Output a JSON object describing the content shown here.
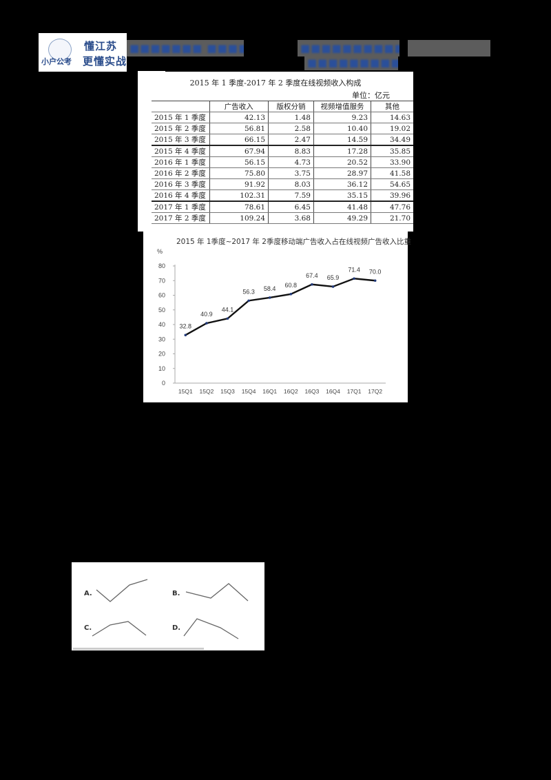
{
  "header": {
    "logo": {
      "line1": "懂江苏",
      "line2": "小户公考",
      "line3": "更懂实战"
    },
    "blurred_left": "■■■■■■■ ■■■■",
    "blurred_right_line1": "■■■■■■■■■■ ■■■■■■■",
    "blurred_right_line2": "■■■■■■■■■■"
  },
  "table": {
    "title": "2015 年 1 季度-2017 年 2 季度在线视频收入构成",
    "unit": "单位：亿元",
    "columns": [
      "",
      "广告收入",
      "版权分销",
      "视频增值服务",
      "其他"
    ],
    "rows": [
      {
        "period": "2015 年 1 季度",
        "ad": "42.13",
        "copyright": "1.48",
        "vas": "9.23",
        "other": "14.63"
      },
      {
        "period": "2015 年 2 季度",
        "ad": "56.81",
        "copyright": "2.58",
        "vas": "10.40",
        "other": "19.02"
      },
      {
        "period": "2015 年 3 季度",
        "ad": "66.15",
        "copyright": "2.47",
        "vas": "14.59",
        "other": "34.49"
      },
      {
        "period": "2015 年 4 季度",
        "ad": "67.94",
        "copyright": "8.83",
        "vas": "17.28",
        "other": "35.85"
      },
      {
        "period": "2016 年 1 季度",
        "ad": "56.15",
        "copyright": "4.73",
        "vas": "20.52",
        "other": "33.90"
      },
      {
        "period": "2016 年 2 季度",
        "ad": "75.80",
        "copyright": "3.75",
        "vas": "28.97",
        "other": "41.58"
      },
      {
        "period": "2016 年 3 季度",
        "ad": "91.92",
        "copyright": "8.03",
        "vas": "36.12",
        "other": "54.65"
      },
      {
        "period": "2016 年 4 季度",
        "ad": "102.31",
        "copyright": "7.59",
        "vas": "35.15",
        "other": "39.96"
      },
      {
        "period": "2017 年 1 季度",
        "ad": "78.61",
        "copyright": "6.45",
        "vas": "41.48",
        "other": "47.76"
      },
      {
        "period": "2017 年 2 季度",
        "ad": "109.24",
        "copyright": "3.68",
        "vas": "49.29",
        "other": "21.70"
      }
    ]
  },
  "chart_data": [
    {
      "type": "table",
      "title": "2015 年 1 季度-2017 年 2 季度在线视频收入构成",
      "unit": "单位：亿元",
      "categories": [
        "2015 年 1 季度",
        "2015 年 2 季度",
        "2015 年 3 季度",
        "2015 年 4 季度",
        "2016 年 1 季度",
        "2016 年 2 季度",
        "2016 年 3 季度",
        "2016 年 4 季度",
        "2017 年 1 季度",
        "2017 年 2 季度"
      ],
      "series": [
        {
          "name": "广告收入",
          "values": [
            42.13,
            56.81,
            66.15,
            67.94,
            56.15,
            75.8,
            91.92,
            102.31,
            78.61,
            109.24
          ]
        },
        {
          "name": "版权分销",
          "values": [
            1.48,
            2.58,
            2.47,
            8.83,
            4.73,
            3.75,
            8.03,
            7.59,
            6.45,
            3.68
          ]
        },
        {
          "name": "视频增值服务",
          "values": [
            9.23,
            10.4,
            14.59,
            17.28,
            20.52,
            28.97,
            36.12,
            35.15,
            41.48,
            49.29
          ]
        },
        {
          "name": "其他",
          "values": [
            14.63,
            19.02,
            34.49,
            35.85,
            33.9,
            41.58,
            54.65,
            39.96,
            47.76,
            21.7
          ]
        }
      ]
    },
    {
      "type": "line",
      "title": "2015 年 1季度~2017 年 2季度移动端广告收入占在线视频广告收入比重",
      "ylabel": "%",
      "xlabel": "",
      "categories": [
        "15Q1",
        "15Q2",
        "15Q3",
        "15Q4",
        "16Q1",
        "16Q2",
        "16Q3",
        "16Q4",
        "17Q1",
        "17Q2"
      ],
      "values": [
        32.8,
        40.9,
        44.1,
        56.3,
        58.4,
        60.8,
        67.4,
        65.9,
        71.4,
        70.0
      ],
      "ylim": [
        0,
        80
      ],
      "yticks": [
        0,
        10,
        20,
        30,
        40,
        50,
        60,
        70,
        80
      ],
      "data_labels": true,
      "grid": false,
      "legend": "none"
    }
  ],
  "line_chart": {
    "title": "2015 年 1季度~2017 年 2季度移动端广告收入占在线视频广告收入比重",
    "y_unit": "%",
    "yticks": [
      "0",
      "10",
      "20",
      "30",
      "40",
      "50",
      "60",
      "70",
      "80"
    ],
    "categories": [
      "15Q1",
      "15Q2",
      "15Q3",
      "15Q4",
      "16Q1",
      "16Q2",
      "16Q3",
      "16Q4",
      "17Q1",
      "17Q2"
    ],
    "labels": [
      "32.8",
      "40.9",
      "44.1",
      "56.3",
      "58.4",
      "60.8",
      "67.4",
      "65.9",
      "71.4",
      "70.0"
    ]
  },
  "options": {
    "labels": [
      "A.",
      "B.",
      "C.",
      "D."
    ]
  }
}
